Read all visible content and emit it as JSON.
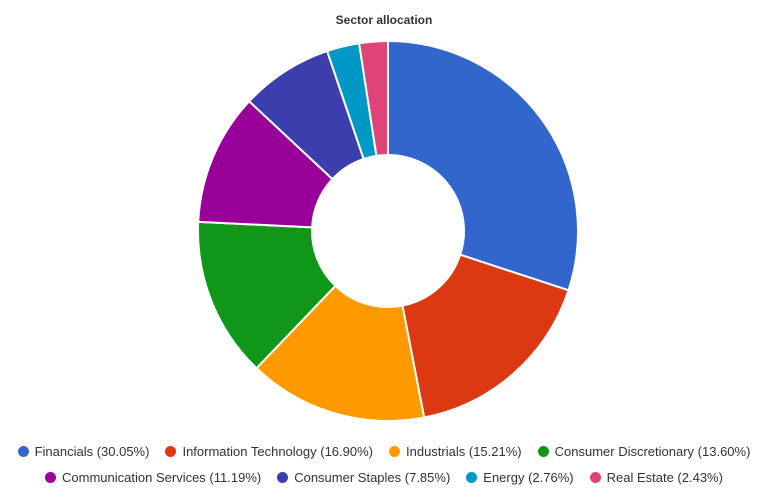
{
  "chart_data": {
    "type": "pie",
    "title": "Sector allocation",
    "donut": true,
    "legend_position": "bottom",
    "slices": [
      {
        "label": "Financials",
        "value": 30.05,
        "legend_text": "Financials (30.05%)",
        "color": "#3366cc"
      },
      {
        "label": "Information Technology",
        "value": 16.9,
        "legend_text": "Information Technology (16.90%)",
        "color": "#dc3912"
      },
      {
        "label": "Industrials",
        "value": 15.21,
        "legend_text": "Industrials (15.21%)",
        "color": "#ff9900"
      },
      {
        "label": "Consumer Discretionary",
        "value": 13.6,
        "legend_text": "Consumer Discretionary (13.60%)",
        "color": "#109618"
      },
      {
        "label": "Communication Services",
        "value": 11.19,
        "legend_text": "Communication Services (11.19%)",
        "color": "#990099"
      },
      {
        "label": "Consumer Staples",
        "value": 7.85,
        "legend_text": "Consumer Staples (7.85%)",
        "color": "#3b3eac"
      },
      {
        "label": "Energy",
        "value": 2.76,
        "legend_text": "Energy (2.76%)",
        "color": "#0099c6"
      },
      {
        "label": "Real Estate",
        "value": 2.43,
        "legend_text": "Real Estate (2.43%)",
        "color": "#dd4477"
      }
    ]
  }
}
